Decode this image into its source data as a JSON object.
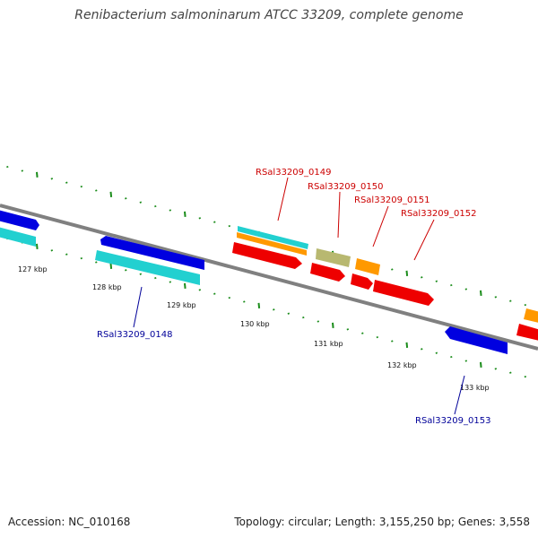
{
  "title": "Renibacterium salmoninarum ATCC 33209, complete genome",
  "footer": {
    "accession": "Accession: NC_010168",
    "stats": "Topology: circular; Length: 3,155,250 bp; Genes: 3,558"
  },
  "ticks": {
    "t127": "127 kbp",
    "t128": "128 kbp",
    "t129": "129 kbp",
    "t130": "130 kbp",
    "t131": "131 kbp",
    "t132": "132 kbp",
    "t133": "133 kbp"
  },
  "genes": {
    "g0148": "RSal33209_0148",
    "g0149": "RSal33209_0149",
    "g0150": "RSal33209_0150",
    "g0151": "RSal33209_0151",
    "g0152": "RSal33209_0152",
    "g0153": "RSal33209_0153"
  },
  "colors": {
    "backbone": "#888888",
    "tick": "#1a8c1a",
    "forward_label": "#cc0000",
    "reverse_label": "#000099",
    "blue": "#0000e0",
    "cyan": "#22d0d0",
    "red": "#ee0000",
    "orange": "#ff9900",
    "olive": "#b8b870"
  }
}
